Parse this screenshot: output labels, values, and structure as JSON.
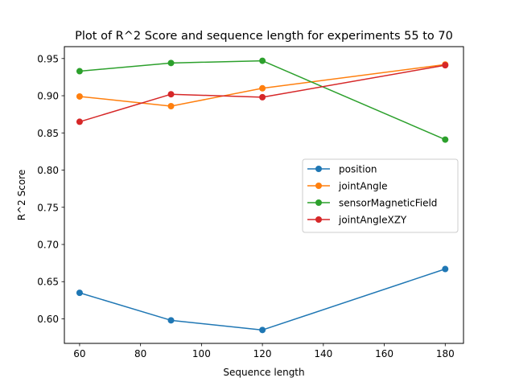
{
  "chart_data": {
    "type": "line",
    "title": "Plot of R^2 Score and sequence length for experiments 55 to 70",
    "xlabel": "Sequence length",
    "ylabel": "R^2 Score",
    "x": [
      60,
      90,
      120,
      180
    ],
    "xlim": [
      55,
      186
    ],
    "ylim": [
      0.567,
      0.966
    ],
    "xticks": [
      60,
      80,
      100,
      120,
      140,
      160,
      180
    ],
    "yticks": [
      0.6,
      0.65,
      0.7,
      0.75,
      0.8,
      0.85,
      0.9,
      0.95
    ],
    "xtick_labels": [
      "60",
      "80",
      "100",
      "120",
      "140",
      "160",
      "180"
    ],
    "ytick_labels": [
      "0.60",
      "0.65",
      "0.70",
      "0.75",
      "0.80",
      "0.85",
      "0.90",
      "0.95"
    ],
    "grid": false,
    "legend_position": "center-right",
    "series": [
      {
        "name": "position",
        "color": "#1f77b4",
        "values": [
          0.635,
          0.598,
          0.585,
          0.667
        ]
      },
      {
        "name": "jointAngle",
        "color": "#ff7f0e",
        "values": [
          0.899,
          0.886,
          0.91,
          0.942
        ]
      },
      {
        "name": "sensorMagneticField",
        "color": "#2ca02c",
        "values": [
          0.933,
          0.944,
          0.947,
          0.841
        ]
      },
      {
        "name": "jointAngleXZY",
        "color": "#d62728",
        "values": [
          0.865,
          0.902,
          0.898,
          0.941
        ]
      }
    ]
  }
}
